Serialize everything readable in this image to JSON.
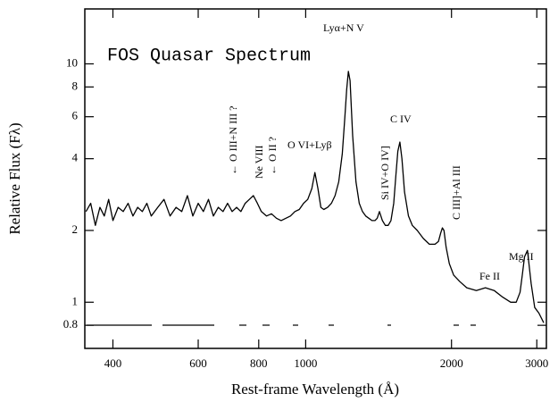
{
  "chart_data": {
    "type": "line",
    "title": "FOS Quasar Spectrum",
    "x_label": "Rest-frame Wavelength (Å)",
    "y_label": "Relative Flux (Fλ)",
    "log_x": true,
    "log_y": true,
    "xlim": [
      350,
      3140
    ],
    "ylim": [
      0.64,
      17
    ],
    "xticks": [
      400,
      600,
      800,
      1000,
      2000,
      3000
    ],
    "yticks": [
      0.8,
      1,
      2,
      4,
      6,
      8,
      10
    ],
    "annotations": [
      "Lyα+N V",
      "O VI+Lyβ",
      "C IV",
      "Mg II",
      "Fe II",
      "← O III+N III ?",
      "Ne VIII",
      "← O II ?",
      "Si IV+O IV]",
      "C III]+Al III"
    ],
    "x": [
      352,
      360,
      368,
      376,
      384,
      392,
      400,
      410,
      420,
      430,
      440,
      450,
      460,
      470,
      480,
      495,
      510,
      525,
      540,
      555,
      570,
      585,
      600,
      615,
      630,
      645,
      660,
      675,
      690,
      705,
      720,
      735,
      750,
      765,
      780,
      795,
      810,
      830,
      850,
      870,
      890,
      910,
      930,
      950,
      970,
      990,
      1010,
      1030,
      1045,
      1060,
      1075,
      1090,
      1110,
      1130,
      1150,
      1170,
      1190,
      1205,
      1215,
      1225,
      1235,
      1250,
      1270,
      1290,
      1310,
      1330,
      1350,
      1370,
      1390,
      1405,
      1420,
      1440,
      1460,
      1480,
      1500,
      1520,
      1535,
      1550,
      1565,
      1580,
      1600,
      1630,
      1660,
      1700,
      1750,
      1800,
      1850,
      1880,
      1900,
      1915,
      1930,
      1950,
      1980,
      2020,
      2080,
      2150,
      2250,
      2350,
      2450,
      2550,
      2650,
      2720,
      2770,
      2800,
      2830,
      2870,
      2920,
      2970,
      3030,
      3100
    ],
    "series": [
      {
        "color": "#000000",
        "values": [
          2.4,
          2.6,
          2.1,
          2.5,
          2.3,
          2.7,
          2.2,
          2.5,
          2.4,
          2.6,
          2.3,
          2.5,
          2.4,
          2.6,
          2.3,
          2.5,
          2.7,
          2.3,
          2.5,
          2.4,
          2.8,
          2.3,
          2.6,
          2.4,
          2.7,
          2.3,
          2.5,
          2.4,
          2.6,
          2.4,
          2.5,
          2.4,
          2.6,
          2.7,
          2.8,
          2.6,
          2.4,
          2.3,
          2.35,
          2.25,
          2.2,
          2.25,
          2.3,
          2.4,
          2.45,
          2.6,
          2.7,
          3.0,
          3.5,
          3.0,
          2.5,
          2.45,
          2.5,
          2.6,
          2.8,
          3.2,
          4.2,
          6.0,
          7.8,
          9.3,
          8.5,
          5.0,
          3.2,
          2.6,
          2.4,
          2.3,
          2.25,
          2.2,
          2.2,
          2.25,
          2.4,
          2.2,
          2.1,
          2.1,
          2.2,
          2.6,
          3.4,
          4.3,
          4.7,
          4.0,
          2.9,
          2.3,
          2.1,
          2.0,
          1.85,
          1.75,
          1.75,
          1.8,
          1.95,
          2.05,
          2.0,
          1.7,
          1.45,
          1.3,
          1.22,
          1.15,
          1.12,
          1.15,
          1.12,
          1.05,
          1.0,
          1.0,
          1.1,
          1.3,
          1.55,
          1.65,
          1.2,
          0.95,
          0.9,
          0.82
        ]
      }
    ]
  }
}
